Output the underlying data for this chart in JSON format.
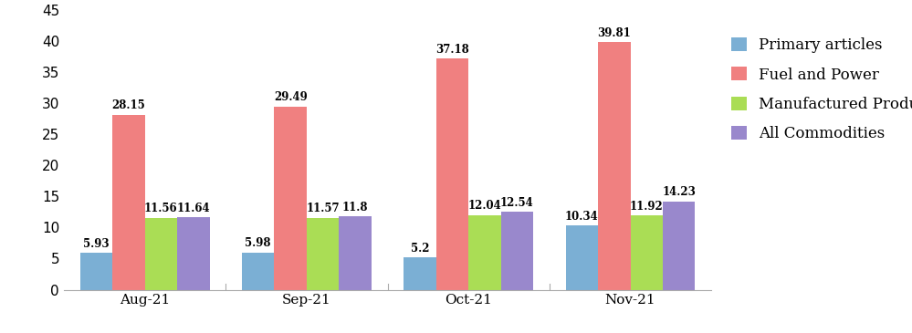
{
  "categories": [
    "Aug-21",
    "Sep-21",
    "Oct-21",
    "Nov-21"
  ],
  "series": [
    {
      "name": "Primary articles",
      "values": [
        5.93,
        5.98,
        5.2,
        10.34
      ],
      "color": "#7BAFD4"
    },
    {
      "name": "Fuel and Power",
      "values": [
        28.15,
        29.49,
        37.18,
        39.81
      ],
      "color": "#F08080"
    },
    {
      "name": "Manufactured Products",
      "values": [
        11.56,
        11.57,
        12.04,
        11.92
      ],
      "color": "#AADD55"
    },
    {
      "name": "All Commodities",
      "values": [
        11.64,
        11.8,
        12.54,
        14.23
      ],
      "color": "#9988CC"
    }
  ],
  "ylim": [
    0,
    45
  ],
  "yticks": [
    0,
    5,
    10,
    15,
    20,
    25,
    30,
    35,
    40,
    45
  ],
  "bar_width": 0.2,
  "label_fontsize": 8.5,
  "tick_fontsize": 11,
  "legend_fontsize": 12,
  "background_color": "#ffffff"
}
